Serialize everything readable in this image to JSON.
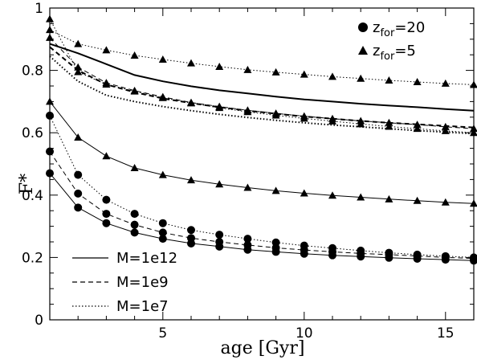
{
  "chart_data": {
    "type": "line",
    "xlabel": "age [Gyr]",
    "ylabel": "F*",
    "xlim": [
      1,
      16
    ],
    "ylim": [
      0,
      1
    ],
    "x_ticks": [
      5,
      10,
      15
    ],
    "y_ticks": [
      0,
      0.2,
      0.4,
      0.6,
      0.8,
      1
    ],
    "y_tick_labels": [
      "0",
      "0.2",
      "0.4",
      "0.6",
      "0.8",
      "1"
    ],
    "grid": false,
    "marker_legend": [
      {
        "marker": "circle",
        "label": "z",
        "sub": "for",
        "value": "=20"
      },
      {
        "marker": "triangle",
        "label": "z",
        "sub": "for",
        "value": "=5"
      }
    ],
    "line_legend": [
      {
        "style": "solid",
        "label": "M=1e12"
      },
      {
        "style": "dashed",
        "label": "M=1e9"
      },
      {
        "style": "dotted",
        "label": "M=1e7"
      }
    ],
    "x": [
      1,
      2,
      3,
      4,
      5,
      6,
      7,
      8,
      9,
      10,
      11,
      12,
      13,
      14,
      15,
      16
    ],
    "series": [
      {
        "marker": "circle",
        "linestyle": "solid",
        "values": [
          0.47,
          0.36,
          0.31,
          0.28,
          0.26,
          0.245,
          0.235,
          0.225,
          0.218,
          0.212,
          0.207,
          0.203,
          0.199,
          0.196,
          0.193,
          0.19
        ]
      },
      {
        "marker": "circle",
        "linestyle": "dashed",
        "values": [
          0.54,
          0.405,
          0.34,
          0.305,
          0.28,
          0.262,
          0.25,
          0.24,
          0.231,
          0.224,
          0.218,
          0.213,
          0.209,
          0.205,
          0.2,
          0.197
        ]
      },
      {
        "marker": "circle",
        "linestyle": "dotted",
        "values": [
          0.655,
          0.465,
          0.385,
          0.34,
          0.31,
          0.288,
          0.273,
          0.26,
          0.248,
          0.238,
          0.23,
          0.222,
          0.215,
          0.209,
          0.204,
          0.2
        ]
      },
      {
        "marker": "triangle",
        "linestyle": "solid",
        "values": [
          0.7,
          0.585,
          0.525,
          0.487,
          0.465,
          0.448,
          0.435,
          0.424,
          0.414,
          0.406,
          0.399,
          0.393,
          0.387,
          0.382,
          0.377,
          0.373
        ]
      },
      {
        "marker": "triangle",
        "linestyle": "dotted",
        "values": [
          0.93,
          0.885,
          0.865,
          0.848,
          0.835,
          0.823,
          0.812,
          0.802,
          0.794,
          0.787,
          0.78,
          0.774,
          0.768,
          0.763,
          0.758,
          0.754
        ]
      },
      {
        "marker": "triangle",
        "linestyle": "dashed",
        "values": [
          0.905,
          0.81,
          0.76,
          0.735,
          0.715,
          0.697,
          0.684,
          0.672,
          0.662,
          0.653,
          0.645,
          0.638,
          0.632,
          0.626,
          0.619,
          0.613
        ]
      },
      {
        "marker": "triangle",
        "linestyle": "dotted",
        "values": [
          0.965,
          0.795,
          0.755,
          0.733,
          0.712,
          0.695,
          0.68,
          0.667,
          0.656,
          0.646,
          0.637,
          0.628,
          0.62,
          0.613,
          0.606,
          0.6
        ]
      },
      {
        "marker": "none",
        "linestyle": "solid",
        "values": [
          0.885,
          0.855,
          0.82,
          0.785,
          0.765,
          0.749,
          0.736,
          0.726,
          0.716,
          0.707,
          0.7,
          0.693,
          0.687,
          0.682,
          0.676,
          0.671
        ]
      },
      {
        "marker": "none",
        "linestyle": "dashed",
        "values": [
          0.875,
          0.8,
          0.755,
          0.73,
          0.71,
          0.695,
          0.682,
          0.671,
          0.661,
          0.652,
          0.645,
          0.638,
          0.632,
          0.627,
          0.622,
          0.617
        ]
      },
      {
        "marker": "none",
        "linestyle": "dotted",
        "values": [
          0.845,
          0.765,
          0.72,
          0.7,
          0.684,
          0.671,
          0.659,
          0.649,
          0.64,
          0.632,
          0.625,
          0.619,
          0.613,
          0.607,
          0.602,
          0.597
        ]
      }
    ]
  }
}
